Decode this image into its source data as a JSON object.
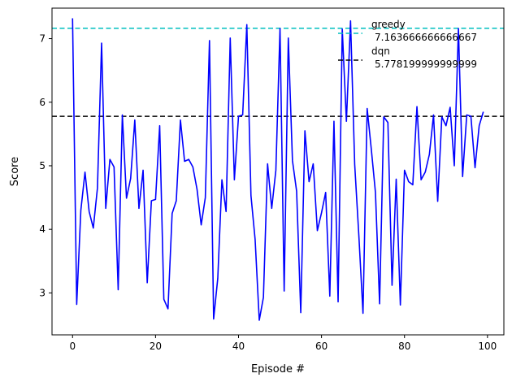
{
  "chart_data": {
    "type": "line",
    "xlabel": "Episode #",
    "ylabel": "Score",
    "xlim": [
      -4.95,
      103.95
    ],
    "ylim": [
      2.34,
      7.48
    ],
    "xticks": [
      0,
      20,
      40,
      60,
      80,
      100
    ],
    "yticks": [
      3,
      4,
      5,
      6,
      7
    ],
    "grid": false,
    "legend_position": "top-right",
    "series": [
      {
        "name": "",
        "color": "#0000ff",
        "x": [
          0,
          1,
          2,
          3,
          4,
          5,
          6,
          7,
          8,
          9,
          10,
          11,
          12,
          13,
          14,
          15,
          16,
          17,
          18,
          19,
          20,
          21,
          22,
          23,
          24,
          25,
          26,
          27,
          28,
          29,
          30,
          31,
          32,
          33,
          34,
          35,
          36,
          37,
          38,
          39,
          40,
          41,
          42,
          43,
          44,
          45,
          46,
          47,
          48,
          49,
          50,
          51,
          52,
          53,
          54,
          55,
          56,
          57,
          58,
          59,
          60,
          61,
          62,
          63,
          64,
          65,
          66,
          67,
          68,
          69,
          70,
          71,
          72,
          73,
          74,
          75,
          76,
          77,
          78,
          79,
          80,
          81,
          82,
          83,
          84,
          85,
          86,
          87,
          88,
          89,
          90,
          91,
          92,
          93,
          94,
          95,
          96,
          97,
          98,
          99
        ],
        "y": [
          7.32,
          2.82,
          4.3,
          4.9,
          4.28,
          4.02,
          4.65,
          6.93,
          4.33,
          5.1,
          4.98,
          3.05,
          5.8,
          4.49,
          4.8,
          5.72,
          4.33,
          4.93,
          3.16,
          4.45,
          4.47,
          5.63,
          2.9,
          2.75,
          4.25,
          4.45,
          5.72,
          5.07,
          5.1,
          4.98,
          4.63,
          4.07,
          4.5,
          6.97,
          2.59,
          3.23,
          4.78,
          4.28,
          7.01,
          4.78,
          5.78,
          5.8,
          7.22,
          4.53,
          3.84,
          2.57,
          2.93,
          5.03,
          4.33,
          4.93,
          7.16,
          3.03,
          7.01,
          5.08,
          4.6,
          2.69,
          5.55,
          4.75,
          5.03,
          3.98,
          4.26,
          4.58,
          2.95,
          5.7,
          2.86,
          7.15,
          5.7,
          7.28,
          5.02,
          3.9,
          2.68,
          5.9,
          5.26,
          4.58,
          2.83,
          5.77,
          5.68,
          3.12,
          4.79,
          2.81,
          4.93,
          4.75,
          4.7,
          5.93,
          4.78,
          4.9,
          5.18,
          5.8,
          4.44,
          5.77,
          5.63,
          5.92,
          5.0,
          7.16,
          4.83,
          5.8,
          5.78,
          4.97,
          5.63,
          5.85
        ]
      }
    ],
    "reference_lines": [
      {
        "name": "greedy",
        "value_label": "7.163666666666667",
        "y": 7.163666666666667,
        "color": "#00bfbf",
        "style": "dashed"
      },
      {
        "name": "dqn",
        "value_label": "5.778199999999999",
        "y": 5.778199999999999,
        "color": "#000000",
        "style": "dashed"
      }
    ]
  }
}
